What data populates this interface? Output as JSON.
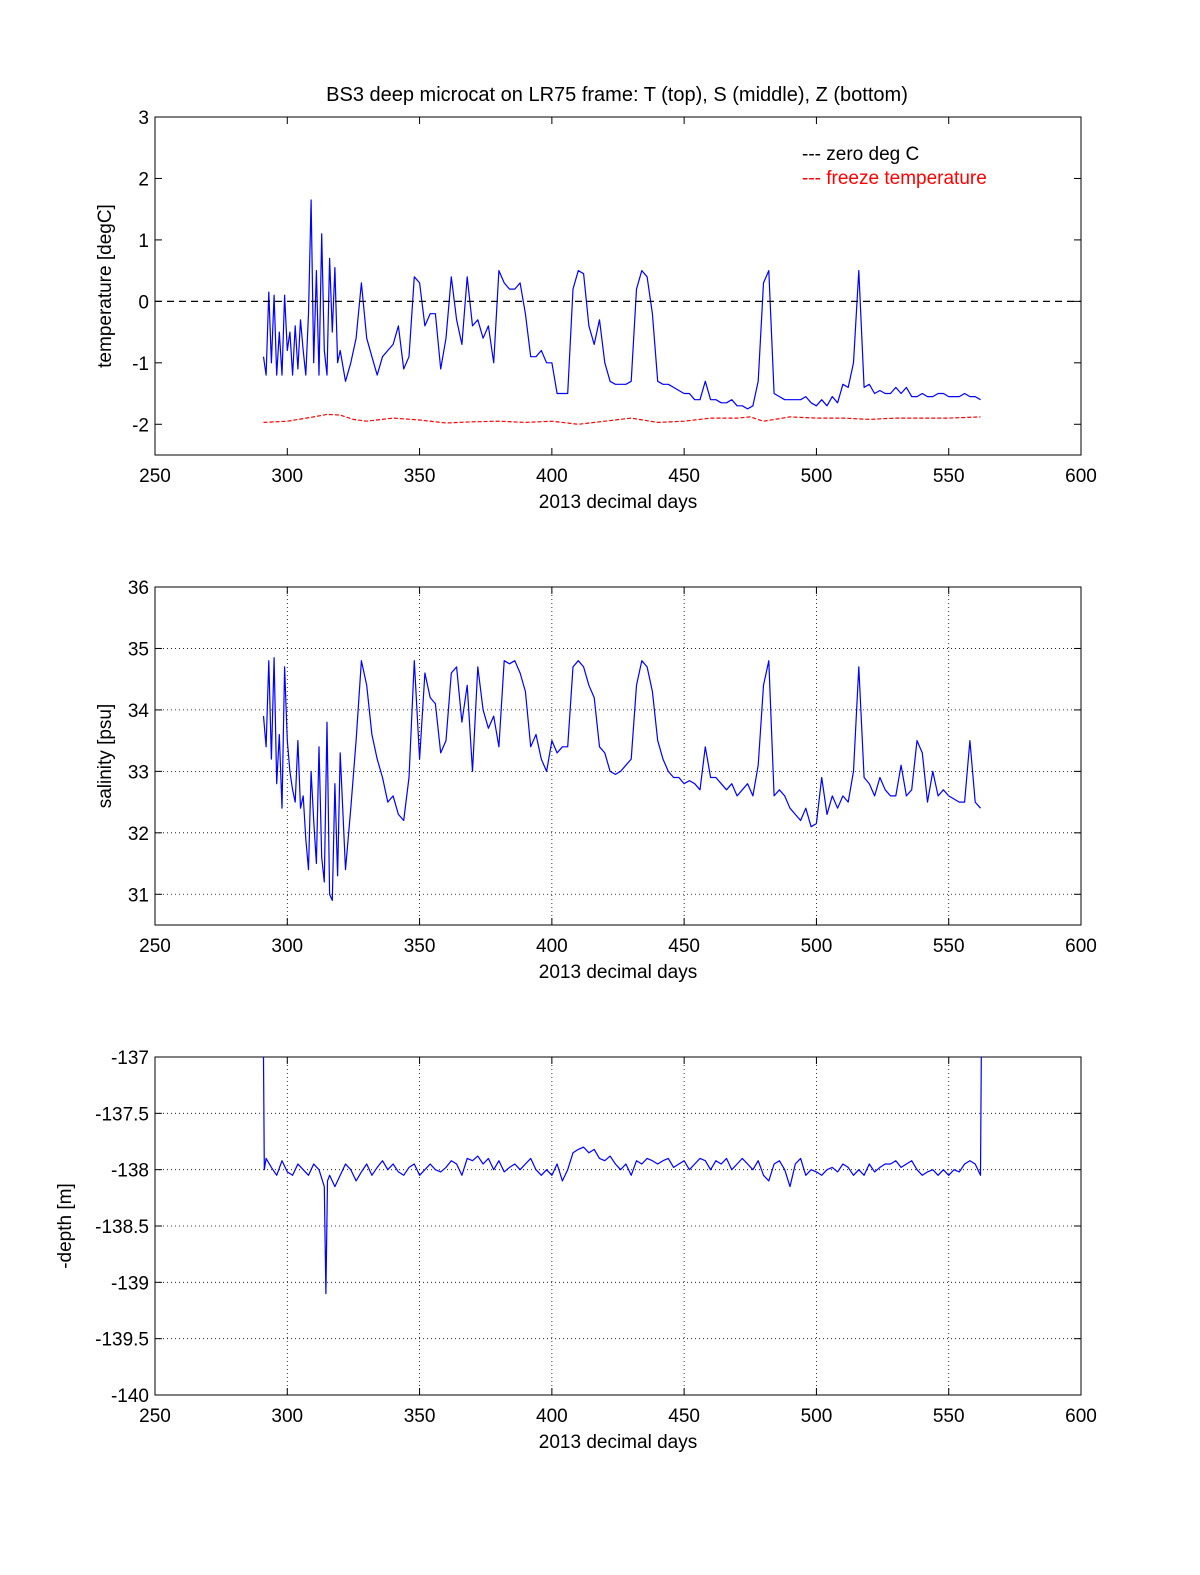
{
  "figure": {
    "title": "BS3 deep microcat on LR75 frame: T (top), S (middle), Z (bottom)"
  },
  "chart_data": [
    {
      "type": "line",
      "xlabel": "2013 decimal days",
      "ylabel": "temperature [degC]",
      "xlim": [
        250,
        600
      ],
      "ylim": [
        -2.5,
        3
      ],
      "xticks": [
        "250",
        "300",
        "350",
        "400",
        "450",
        "500",
        "550",
        "600"
      ],
      "yticks": [
        "-2",
        "-1",
        "0",
        "1",
        "2",
        "3"
      ],
      "grid": false,
      "legend_position": "top-right",
      "legend": [
        {
          "label": "--- zero deg C",
          "color": "#000000"
        },
        {
          "label": "--- freeze temperature",
          "color": "#ff0000"
        }
      ],
      "series": [
        {
          "name": "temperature",
          "color": "#0000ff",
          "style": "solid",
          "x": [
            291,
            292,
            293,
            294,
            295,
            296,
            297,
            298,
            299,
            300,
            301,
            302,
            303,
            304,
            305,
            306,
            307,
            308,
            309,
            310,
            311,
            312,
            313,
            314,
            315,
            316,
            317,
            318,
            319,
            320,
            322,
            324,
            326,
            328,
            330,
            332,
            334,
            336,
            338,
            340,
            342,
            344,
            346,
            348,
            350,
            352,
            354,
            356,
            358,
            360,
            362,
            364,
            366,
            368,
            370,
            372,
            374,
            376,
            378,
            380,
            382,
            384,
            386,
            388,
            390,
            392,
            394,
            396,
            398,
            400,
            402,
            404,
            406,
            408,
            410,
            412,
            414,
            416,
            418,
            420,
            422,
            424,
            426,
            428,
            430,
            432,
            434,
            436,
            438,
            440,
            442,
            444,
            446,
            448,
            450,
            452,
            454,
            456,
            458,
            460,
            462,
            464,
            466,
            468,
            470,
            472,
            474,
            476,
            478,
            480,
            482,
            484,
            486,
            488,
            490,
            492,
            494,
            496,
            498,
            500,
            502,
            504,
            506,
            508,
            510,
            512,
            514,
            516,
            518,
            520,
            522,
            524,
            526,
            528,
            530,
            532,
            534,
            536,
            538,
            540,
            542,
            544,
            546,
            548,
            550,
            552,
            554,
            556,
            558,
            560,
            562
          ],
          "y": [
            -0.9,
            -1.2,
            0.15,
            -1.0,
            0.1,
            -1.2,
            -0.5,
            -1.2,
            0.1,
            -0.8,
            -0.5,
            -1.2,
            -0.4,
            -1.1,
            -0.3,
            -0.8,
            -1.2,
            -0.2,
            1.65,
            -1.0,
            0.5,
            -1.2,
            1.1,
            -0.8,
            -1.2,
            0.7,
            -0.5,
            0.55,
            -1.0,
            -0.8,
            -1.3,
            -1.0,
            -0.6,
            0.3,
            -0.6,
            -0.9,
            -1.2,
            -0.9,
            -0.8,
            -0.7,
            -0.4,
            -1.1,
            -0.9,
            0.4,
            0.3,
            -0.4,
            -0.2,
            -0.2,
            -1.1,
            -0.6,
            0.4,
            -0.3,
            -0.7,
            0.4,
            -0.4,
            -0.3,
            -0.6,
            -0.4,
            -1.0,
            0.5,
            0.3,
            0.2,
            0.2,
            0.3,
            -0.2,
            -0.9,
            -0.9,
            -0.8,
            -1.0,
            -1.0,
            -1.5,
            -1.5,
            -1.5,
            0.2,
            0.5,
            0.45,
            -0.4,
            -0.7,
            -0.3,
            -1.0,
            -1.3,
            -1.35,
            -1.35,
            -1.35,
            -1.3,
            0.2,
            0.5,
            0.4,
            -0.2,
            -1.3,
            -1.35,
            -1.35,
            -1.4,
            -1.45,
            -1.5,
            -1.5,
            -1.6,
            -1.6,
            -1.3,
            -1.6,
            -1.6,
            -1.65,
            -1.65,
            -1.6,
            -1.7,
            -1.7,
            -1.75,
            -1.7,
            -1.3,
            0.3,
            0.5,
            -1.5,
            -1.55,
            -1.6,
            -1.6,
            -1.6,
            -1.6,
            -1.55,
            -1.65,
            -1.7,
            -1.6,
            -1.7,
            -1.55,
            -1.65,
            -1.35,
            -1.4,
            -1.0,
            0.5,
            -1.4,
            -1.35,
            -1.5,
            -1.45,
            -1.5,
            -1.5,
            -1.4,
            -1.5,
            -1.4,
            -1.55,
            -1.55,
            -1.5,
            -1.55,
            -1.55,
            -1.5,
            -1.5,
            -1.55,
            -1.55,
            -1.55,
            -1.5,
            -1.55,
            -1.55,
            -1.6
          ]
        },
        {
          "name": "zero deg C",
          "color": "#000000",
          "style": "dashed",
          "x": [
            250,
            600
          ],
          "y": [
            0,
            0
          ]
        },
        {
          "name": "freeze temperature",
          "color": "#ff0000",
          "style": "dashed",
          "x": [
            291,
            300,
            310,
            315,
            320,
            325,
            330,
            340,
            350,
            360,
            370,
            380,
            390,
            400,
            410,
            420,
            430,
            440,
            450,
            460,
            470,
            475,
            480,
            490,
            500,
            510,
            520,
            530,
            540,
            550,
            562
          ],
          "y": [
            -1.97,
            -1.95,
            -1.88,
            -1.84,
            -1.85,
            -1.92,
            -1.95,
            -1.9,
            -1.93,
            -1.98,
            -1.96,
            -1.95,
            -1.97,
            -1.95,
            -2.0,
            -1.95,
            -1.9,
            -1.97,
            -1.95,
            -1.9,
            -1.9,
            -1.88,
            -1.95,
            -1.88,
            -1.9,
            -1.9,
            -1.92,
            -1.9,
            -1.9,
            -1.9,
            -1.88
          ]
        }
      ]
    },
    {
      "type": "line",
      "xlabel": "2013 decimal days",
      "ylabel": "salinity [psu]",
      "xlim": [
        250,
        600
      ],
      "ylim": [
        30.5,
        36
      ],
      "xticks": [
        "250",
        "300",
        "350",
        "400",
        "450",
        "500",
        "550",
        "600"
      ],
      "yticks": [
        "31",
        "32",
        "33",
        "34",
        "35",
        "36"
      ],
      "grid": true,
      "series": [
        {
          "name": "salinity",
          "color": "#0000ff",
          "style": "solid",
          "x": [
            291,
            292,
            293,
            294,
            295,
            296,
            297,
            298,
            299,
            300,
            301,
            302,
            303,
            304,
            305,
            306,
            307,
            308,
            309,
            310,
            311,
            312,
            313,
            314,
            315,
            316,
            317,
            318,
            319,
            320,
            322,
            324,
            326,
            328,
            330,
            332,
            334,
            336,
            338,
            340,
            342,
            344,
            346,
            348,
            350,
            352,
            354,
            356,
            358,
            360,
            362,
            364,
            366,
            368,
            370,
            372,
            374,
            376,
            378,
            380,
            382,
            384,
            386,
            388,
            390,
            392,
            394,
            396,
            398,
            400,
            402,
            404,
            406,
            408,
            410,
            412,
            414,
            416,
            418,
            420,
            422,
            424,
            426,
            428,
            430,
            432,
            434,
            436,
            438,
            440,
            442,
            444,
            446,
            448,
            450,
            452,
            454,
            456,
            458,
            460,
            462,
            464,
            466,
            468,
            470,
            472,
            474,
            476,
            478,
            480,
            482,
            484,
            486,
            488,
            490,
            492,
            494,
            496,
            498,
            500,
            502,
            504,
            506,
            508,
            510,
            512,
            514,
            516,
            518,
            520,
            522,
            524,
            526,
            528,
            530,
            532,
            534,
            536,
            538,
            540,
            542,
            544,
            546,
            548,
            550,
            552,
            554,
            556,
            558,
            560,
            562
          ],
          "y": [
            33.9,
            33.4,
            34.8,
            33.2,
            34.85,
            32.8,
            33.6,
            32.4,
            34.7,
            33.5,
            33.0,
            32.7,
            32.5,
            33.5,
            32.4,
            32.6,
            31.9,
            31.4,
            33.0,
            32.2,
            31.5,
            33.4,
            31.6,
            31.2,
            33.8,
            31.0,
            30.9,
            32.8,
            31.3,
            33.3,
            31.4,
            32.4,
            33.5,
            34.8,
            34.4,
            33.6,
            33.2,
            32.9,
            32.5,
            32.6,
            32.3,
            32.2,
            32.9,
            34.8,
            33.2,
            34.6,
            34.2,
            34.1,
            33.3,
            33.5,
            34.6,
            34.7,
            33.8,
            34.4,
            33.0,
            34.7,
            34.0,
            33.7,
            33.9,
            33.4,
            34.8,
            34.75,
            34.8,
            34.6,
            34.3,
            33.4,
            33.6,
            33.2,
            33.0,
            33.5,
            33.3,
            33.4,
            33.4,
            34.7,
            34.8,
            34.7,
            34.4,
            34.2,
            33.4,
            33.3,
            33.0,
            32.95,
            33.0,
            33.1,
            33.2,
            34.4,
            34.8,
            34.7,
            34.3,
            33.5,
            33.2,
            33.0,
            32.9,
            32.9,
            32.8,
            32.85,
            32.8,
            32.7,
            33.4,
            32.9,
            32.9,
            32.8,
            32.7,
            32.8,
            32.6,
            32.7,
            32.8,
            32.6,
            33.1,
            34.4,
            34.8,
            32.6,
            32.7,
            32.6,
            32.4,
            32.3,
            32.2,
            32.4,
            32.1,
            32.15,
            32.9,
            32.3,
            32.6,
            32.4,
            32.6,
            32.5,
            33.0,
            34.7,
            32.9,
            32.8,
            32.6,
            32.9,
            32.7,
            32.6,
            32.6,
            33.1,
            32.6,
            32.7,
            33.5,
            33.3,
            32.5,
            33.0,
            32.6,
            32.7,
            32.6,
            32.55,
            32.5,
            32.5,
            33.5,
            32.5,
            32.4
          ]
        }
      ]
    },
    {
      "type": "line",
      "xlabel": "2013 decimal days",
      "ylabel": "-depth [m]",
      "xlim": [
        250,
        600
      ],
      "ylim": [
        -140,
        -137
      ],
      "xticks": [
        "250",
        "300",
        "350",
        "400",
        "450",
        "500",
        "550",
        "600"
      ],
      "yticks": [
        "-140",
        "-139.5",
        "-139",
        "-138.5",
        "-138",
        "-137.5",
        "-137"
      ],
      "grid": true,
      "series": [
        {
          "name": "-depth",
          "color": "#0000ff",
          "style": "solid",
          "x": [
            291,
            291.3,
            292,
            294,
            296,
            298,
            300,
            302,
            304,
            306,
            308,
            310,
            312,
            314,
            314.6,
            315.2,
            316,
            318,
            320,
            322,
            324,
            326,
            328,
            330,
            332,
            334,
            336,
            338,
            340,
            342,
            344,
            346,
            348,
            350,
            352,
            354,
            356,
            358,
            360,
            362,
            364,
            366,
            368,
            370,
            372,
            374,
            376,
            378,
            380,
            382,
            384,
            386,
            388,
            390,
            392,
            394,
            396,
            398,
            400,
            402,
            404,
            406,
            408,
            410,
            412,
            414,
            416,
            418,
            420,
            422,
            424,
            426,
            428,
            430,
            432,
            434,
            436,
            438,
            440,
            442,
            444,
            446,
            448,
            450,
            452,
            454,
            456,
            458,
            460,
            462,
            464,
            466,
            468,
            470,
            472,
            474,
            476,
            478,
            480,
            482,
            484,
            486,
            488,
            490,
            492,
            494,
            496,
            498,
            500,
            502,
            504,
            506,
            508,
            510,
            512,
            514,
            516,
            518,
            520,
            522,
            524,
            526,
            528,
            530,
            532,
            534,
            536,
            538,
            540,
            542,
            544,
            546,
            548,
            550,
            552,
            554,
            556,
            558,
            560,
            562,
            562.3
          ],
          "y": [
            -137.0,
            -138.0,
            -137.9,
            -137.98,
            -138.05,
            -137.92,
            -138.02,
            -138.05,
            -137.95,
            -138.0,
            -138.05,
            -137.95,
            -138.0,
            -138.15,
            -139.1,
            -138.1,
            -138.05,
            -138.15,
            -138.05,
            -137.95,
            -138.0,
            -138.1,
            -138.02,
            -137.95,
            -138.05,
            -137.98,
            -137.92,
            -138.0,
            -137.95,
            -138.02,
            -138.05,
            -137.98,
            -137.95,
            -138.05,
            -138.0,
            -137.95,
            -138.0,
            -138.02,
            -137.98,
            -137.92,
            -137.95,
            -138.05,
            -137.9,
            -137.92,
            -137.88,
            -137.95,
            -137.9,
            -138.0,
            -137.92,
            -138.02,
            -137.98,
            -137.95,
            -138.0,
            -137.95,
            -137.9,
            -138.0,
            -138.05,
            -138.0,
            -138.05,
            -137.95,
            -138.1,
            -138.0,
            -137.85,
            -137.82,
            -137.8,
            -137.85,
            -137.82,
            -137.9,
            -137.92,
            -137.88,
            -137.95,
            -138.0,
            -137.95,
            -138.05,
            -137.92,
            -137.95,
            -137.9,
            -137.92,
            -137.95,
            -137.92,
            -137.9,
            -137.98,
            -137.95,
            -137.92,
            -138.0,
            -137.95,
            -137.9,
            -137.92,
            -138.0,
            -137.92,
            -137.95,
            -137.9,
            -138.0,
            -137.95,
            -137.9,
            -137.95,
            -138.0,
            -137.92,
            -138.05,
            -138.1,
            -137.95,
            -137.92,
            -138.0,
            -138.15,
            -137.95,
            -137.9,
            -138.05,
            -138.0,
            -138.02,
            -138.05,
            -138.0,
            -137.98,
            -138.02,
            -137.95,
            -137.98,
            -138.05,
            -138.0,
            -138.05,
            -137.95,
            -138.02,
            -137.98,
            -137.95,
            -137.95,
            -137.92,
            -137.98,
            -137.95,
            -137.92,
            -138.0,
            -138.05,
            -138.02,
            -138.0,
            -138.05,
            -138.0,
            -138.05,
            -138.0,
            -138.02,
            -137.95,
            -137.92,
            -137.95,
            -138.05,
            -137.0
          ]
        }
      ]
    }
  ]
}
